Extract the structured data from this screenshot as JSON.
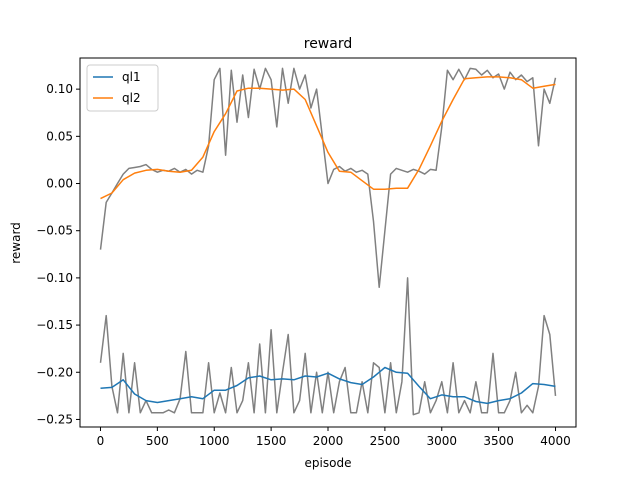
{
  "chart_data": {
    "type": "line",
    "title": "reward",
    "xlabel": "episode",
    "ylabel": "reward",
    "xlim": [
      -180,
      4180
    ],
    "ylim": [
      -0.258,
      0.133
    ],
    "xticks": [
      0,
      500,
      1000,
      1500,
      2000,
      2500,
      3000,
      3500,
      4000
    ],
    "xtick_labels": [
      "0",
      "500",
      "1000",
      "1500",
      "2000",
      "2500",
      "3000",
      "3500",
      "4000"
    ],
    "yticks": [
      -0.25,
      -0.2,
      -0.15,
      -0.1,
      -0.05,
      0.0,
      0.05,
      0.1
    ],
    "ytick_labels": [
      "−0.25",
      "−0.20",
      "−0.15",
      "−0.10",
      "−0.05",
      "0.00",
      "0.05",
      "0.10"
    ],
    "grid": false,
    "legend_position": "top-left",
    "colors": {
      "ql1": "#1f77b4",
      "ql2": "#ff7f0e",
      "raw": "#808080"
    },
    "series": [
      {
        "name": "ql1",
        "color": "#1f77b4",
        "x": [
          0,
          100,
          200,
          300,
          400,
          500,
          600,
          700,
          800,
          900,
          1000,
          1100,
          1200,
          1300,
          1400,
          1500,
          1600,
          1700,
          1800,
          1900,
          2000,
          2100,
          2200,
          2300,
          2400,
          2500,
          2600,
          2700,
          2800,
          2900,
          3000,
          3100,
          3200,
          3300,
          3400,
          3500,
          3600,
          3700,
          3800,
          3900,
          4000
        ],
        "y": [
          -0.217,
          -0.216,
          -0.208,
          -0.223,
          -0.23,
          -0.232,
          -0.23,
          -0.228,
          -0.226,
          -0.228,
          -0.219,
          -0.219,
          -0.214,
          -0.206,
          -0.204,
          -0.208,
          -0.207,
          -0.208,
          -0.204,
          -0.205,
          -0.201,
          -0.207,
          -0.211,
          -0.213,
          -0.205,
          -0.195,
          -0.2,
          -0.201,
          -0.215,
          -0.228,
          -0.224,
          -0.226,
          -0.226,
          -0.231,
          -0.233,
          -0.23,
          -0.228,
          -0.222,
          -0.212,
          -0.213,
          -0.215
        ]
      },
      {
        "name": "ql2",
        "color": "#ff7f0e",
        "x": [
          0,
          100,
          200,
          300,
          400,
          500,
          600,
          700,
          800,
          900,
          1000,
          1100,
          1200,
          1300,
          1400,
          1500,
          1600,
          1700,
          1800,
          1900,
          2000,
          2100,
          2200,
          2300,
          2400,
          2500,
          2600,
          2700,
          2800,
          2900,
          3000,
          3100,
          3200,
          3300,
          3400,
          3500,
          3600,
          3700,
          3800,
          3900,
          4000
        ],
        "y": [
          -0.016,
          -0.01,
          0.004,
          0.011,
          0.014,
          0.015,
          0.013,
          0.012,
          0.014,
          0.028,
          0.055,
          0.074,
          0.098,
          0.101,
          0.101,
          0.1,
          0.099,
          0.1,
          0.089,
          0.061,
          0.033,
          0.013,
          0.012,
          0.003,
          -0.006,
          -0.006,
          -0.005,
          -0.005,
          0.015,
          0.04,
          0.066,
          0.089,
          0.111,
          0.112,
          0.113,
          0.113,
          0.112,
          0.11,
          0.101,
          0.103,
          0.105
        ]
      },
      {
        "name": "",
        "color": "#808080",
        "x": [
          0,
          50,
          100,
          150,
          200,
          250,
          300,
          350,
          400,
          450,
          500,
          550,
          600,
          650,
          700,
          750,
          800,
          850,
          900,
          950,
          1000,
          1050,
          1100,
          1150,
          1200,
          1250,
          1300,
          1350,
          1400,
          1450,
          1500,
          1550,
          1600,
          1650,
          1700,
          1750,
          1800,
          1850,
          1900,
          1950,
          2000,
          2050,
          2100,
          2150,
          2200,
          2250,
          2300,
          2350,
          2400,
          2450,
          2500,
          2550,
          2600,
          2650,
          2700,
          2750,
          2800,
          2850,
          2900,
          2950,
          3000,
          3050,
          3100,
          3150,
          3200,
          3250,
          3300,
          3350,
          3400,
          3450,
          3500,
          3550,
          3600,
          3650,
          3700,
          3750,
          3800,
          3850,
          3900,
          3950,
          4000
        ],
        "y": [
          -0.07,
          -0.02,
          -0.01,
          0.0,
          0.01,
          0.016,
          0.017,
          0.018,
          0.02,
          0.015,
          0.012,
          0.014,
          0.013,
          0.016,
          0.012,
          0.015,
          0.01,
          0.014,
          0.012,
          0.04,
          0.11,
          0.122,
          0.03,
          0.12,
          0.065,
          0.115,
          0.07,
          0.121,
          0.1,
          0.122,
          0.11,
          0.06,
          0.122,
          0.085,
          0.122,
          0.1,
          0.115,
          0.08,
          0.1,
          0.05,
          0.0,
          0.015,
          0.018,
          0.013,
          0.016,
          0.012,
          0.014,
          0.01,
          -0.04,
          -0.11,
          -0.05,
          0.01,
          0.016,
          0.014,
          0.012,
          0.015,
          0.013,
          0.01,
          0.015,
          0.014,
          0.06,
          0.12,
          0.11,
          0.121,
          0.11,
          0.122,
          0.121,
          0.115,
          0.12,
          0.112,
          0.116,
          0.1,
          0.118,
          0.11,
          0.115,
          0.108,
          0.112,
          0.04,
          0.1,
          0.085,
          0.112
        ]
      },
      {
        "name": "",
        "color": "#808080",
        "x": [
          0,
          50,
          100,
          150,
          200,
          250,
          300,
          350,
          400,
          450,
          500,
          550,
          600,
          650,
          700,
          750,
          800,
          850,
          900,
          950,
          1000,
          1050,
          1100,
          1150,
          1200,
          1250,
          1300,
          1350,
          1400,
          1450,
          1500,
          1550,
          1600,
          1650,
          1700,
          1750,
          1800,
          1850,
          1900,
          1950,
          2000,
          2050,
          2100,
          2150,
          2200,
          2250,
          2300,
          2350,
          2400,
          2450,
          2500,
          2550,
          2600,
          2650,
          2700,
          2750,
          2800,
          2850,
          2900,
          2950,
          3000,
          3050,
          3100,
          3150,
          3200,
          3250,
          3300,
          3350,
          3400,
          3450,
          3500,
          3550,
          3600,
          3650,
          3700,
          3750,
          3800,
          3850,
          3900,
          3950,
          4000
        ],
        "y": [
          -0.19,
          -0.14,
          -0.215,
          -0.243,
          -0.18,
          -0.243,
          -0.19,
          -0.243,
          -0.23,
          -0.243,
          -0.243,
          -0.243,
          -0.24,
          -0.243,
          -0.228,
          -0.178,
          -0.243,
          -0.243,
          -0.243,
          -0.19,
          -0.243,
          -0.222,
          -0.243,
          -0.195,
          -0.243,
          -0.23,
          -0.19,
          -0.243,
          -0.17,
          -0.243,
          -0.155,
          -0.243,
          -0.2,
          -0.16,
          -0.243,
          -0.23,
          -0.18,
          -0.243,
          -0.2,
          -0.243,
          -0.2,
          -0.243,
          -0.21,
          -0.195,
          -0.243,
          -0.243,
          -0.21,
          -0.243,
          -0.19,
          -0.195,
          -0.243,
          -0.19,
          -0.243,
          -0.21,
          -0.1,
          -0.245,
          -0.243,
          -0.21,
          -0.243,
          -0.23,
          -0.21,
          -0.243,
          -0.19,
          -0.243,
          -0.23,
          -0.243,
          -0.21,
          -0.243,
          -0.243,
          -0.18,
          -0.243,
          -0.243,
          -0.23,
          -0.2,
          -0.243,
          -0.235,
          -0.243,
          -0.215,
          -0.14,
          -0.16,
          -0.225
        ]
      }
    ]
  }
}
